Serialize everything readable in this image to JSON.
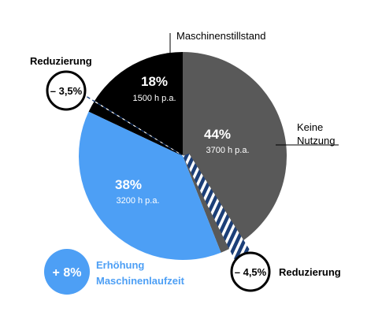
{
  "chart_data": {
    "type": "pie",
    "slices": [
      {
        "label": "Maschinenstillstand",
        "percent_label": "18%",
        "hours_label": "1500 h p.a.",
        "value": 18,
        "color": "#000000"
      },
      {
        "label": "Keine Nutzung",
        "percent_label": "44%",
        "hours_label": "3700 h p.a.",
        "value": 44,
        "color": "#595959"
      },
      {
        "label": "Erhöhung Maschinenlaufzeit",
        "percent_label": "38%",
        "hours_label": "3200 h p.a.",
        "value": 38,
        "color": "#4d9ff5"
      }
    ],
    "annotations": {
      "reduction_left": {
        "label": "Reduzierung",
        "value": "– 3,5%"
      },
      "reduction_right": {
        "label": "Reduzierung",
        "value": "– 4,5%"
      },
      "increase": {
        "value": "+ 8%",
        "label_line1": "Erhöhung",
        "label_line2": "Maschinenlaufzeit"
      }
    },
    "outer_labels": {
      "top": "Maschinenstillstand",
      "right_line1": "Keine",
      "right_line2": "Nutzung"
    }
  }
}
